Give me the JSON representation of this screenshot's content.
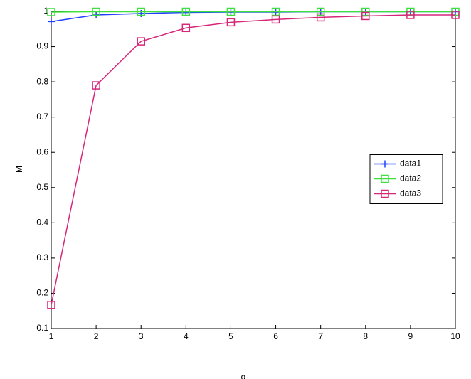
{
  "chart_data": {
    "type": "line",
    "x_label": "q",
    "y_label": "M",
    "x": [
      1,
      2,
      3,
      4,
      5,
      6,
      7,
      8,
      9,
      10
    ],
    "series": [
      {
        "name": "data1",
        "color": "#1f3fff",
        "marker": "plus",
        "values": [
          0.971,
          0.99,
          0.994,
          0.997,
          0.998,
          0.998,
          0.999,
          0.999,
          0.999,
          0.999
        ]
      },
      {
        "name": "data2",
        "color": "#3ee03e",
        "marker": "square",
        "values": [
          0.998,
          0.999,
          0.999,
          0.999,
          0.999,
          0.999,
          0.999,
          0.999,
          0.999,
          0.999
        ]
      },
      {
        "name": "data3",
        "color": "#d6267a",
        "marker": "square",
        "values": [
          0.167,
          0.79,
          0.915,
          0.953,
          0.969,
          0.977,
          0.983,
          0.987,
          0.99,
          0.99
        ]
      }
    ],
    "xlim": [
      1,
      10
    ],
    "xticks": [
      1,
      2,
      3,
      4,
      5,
      6,
      7,
      8,
      9,
      10
    ],
    "ylim": [
      0.1,
      1
    ],
    "yticks": [
      0.1,
      0.2,
      0.3,
      0.4,
      0.5,
      0.6,
      0.7,
      0.8,
      0.9,
      1
    ],
    "grid": false,
    "legend": "right"
  }
}
